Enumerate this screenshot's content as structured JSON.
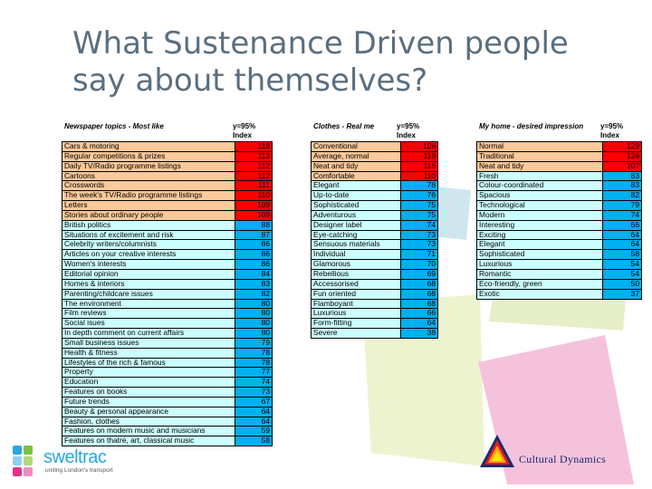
{
  "title_line1": "What Sustenance Driven people",
  "title_line2": "say about themselves?",
  "colors": {
    "orange": "#fbc99a",
    "red": "#ff0000",
    "light_blue": "#ccffff",
    "blue": "#00b0f0"
  },
  "tables": [
    {
      "header": "Newspaper topics - Most like",
      "index_header_1": "y=95%",
      "index_header_2": "Index",
      "rows": [
        {
          "label": "Cars & motoring",
          "value": "118",
          "tier": "high"
        },
        {
          "label": "Regular competitions & prizes",
          "value": "113",
          "tier": "high"
        },
        {
          "label": "Daily TV/Radio programme listings",
          "value": "112",
          "tier": "high"
        },
        {
          "label": "Cartoons",
          "value": "112",
          "tier": "high"
        },
        {
          "label": "Crosswords",
          "value": "111",
          "tier": "high"
        },
        {
          "label": "The week's TV/Radio programme listings",
          "value": "110",
          "tier": "high"
        },
        {
          "label": "Letters",
          "value": "109",
          "tier": "high"
        },
        {
          "label": "Stories about ordinary people",
          "value": "109",
          "tier": "high"
        },
        {
          "label": "British politics",
          "value": "88",
          "tier": "low"
        },
        {
          "label": "Situations of excitement and risk",
          "value": "87",
          "tier": "low"
        },
        {
          "label": "Celebrity writers/columnists",
          "value": "86",
          "tier": "low"
        },
        {
          "label": "Articles on your creative interests",
          "value": "86",
          "tier": "low"
        },
        {
          "label": "Women's interests",
          "value": "86",
          "tier": "low"
        },
        {
          "label": "Editorial opinion",
          "value": "84",
          "tier": "low"
        },
        {
          "label": "Homes & interiors",
          "value": "83",
          "tier": "low"
        },
        {
          "label": "Parenting/childcare issues",
          "value": "82",
          "tier": "low"
        },
        {
          "label": "The environment",
          "value": "80",
          "tier": "low"
        },
        {
          "label": "Film reviews",
          "value": "80",
          "tier": "low"
        },
        {
          "label": "Social isues",
          "value": "80",
          "tier": "low"
        },
        {
          "label": "In depth comment on current affairs",
          "value": "80",
          "tier": "low"
        },
        {
          "label": "Small business issues",
          "value": "79",
          "tier": "low"
        },
        {
          "label": "Health & fitness",
          "value": "78",
          "tier": "low"
        },
        {
          "label": "Lifestyles of the rich & famous",
          "value": "78",
          "tier": "low"
        },
        {
          "label": "Property",
          "value": "77",
          "tier": "low"
        },
        {
          "label": "Education",
          "value": "74",
          "tier": "low"
        },
        {
          "label": "Features on books",
          "value": "73",
          "tier": "low"
        },
        {
          "label": "Future trends",
          "value": "67",
          "tier": "low"
        },
        {
          "label": "Beauty & personal appearance",
          "value": "64",
          "tier": "low"
        },
        {
          "label": "Fashion, clothes",
          "value": "64",
          "tier": "low"
        },
        {
          "label": "Features on modern music and musicians",
          "value": "59",
          "tier": "low"
        },
        {
          "label": "Features on thatre, art, classical music",
          "value": "58",
          "tier": "low"
        }
      ]
    },
    {
      "header": "Clothes - Real me",
      "index_header_1": "y=95%",
      "index_header_2": "Index",
      "rows": [
        {
          "label": "Conventional",
          "value": "126",
          "tier": "high"
        },
        {
          "label": "Average, normal",
          "value": "119",
          "tier": "high"
        },
        {
          "label": "Neat and tidy",
          "value": "116",
          "tier": "high"
        },
        {
          "label": "Comfortable",
          "value": "110",
          "tier": "high"
        },
        {
          "label": "Elegant",
          "value": "78",
          "tier": "low"
        },
        {
          "label": "Up-to-date",
          "value": "76",
          "tier": "low"
        },
        {
          "label": "Sophisticated",
          "value": "75",
          "tier": "low"
        },
        {
          "label": "Adventurous",
          "value": "75",
          "tier": "low"
        },
        {
          "label": "Designer label",
          "value": "74",
          "tier": "low"
        },
        {
          "label": "Eye-catching",
          "value": "73",
          "tier": "low"
        },
        {
          "label": "Sensuous materials",
          "value": "73",
          "tier": "low"
        },
        {
          "label": "Individual",
          "value": "71",
          "tier": "low"
        },
        {
          "label": "Glamorous",
          "value": "70",
          "tier": "low"
        },
        {
          "label": "Rebellious",
          "value": "69",
          "tier": "low"
        },
        {
          "label": "Accessorised",
          "value": "68",
          "tier": "low"
        },
        {
          "label": "Fun oriented",
          "value": "68",
          "tier": "low"
        },
        {
          "label": "Flamboyant",
          "value": "68",
          "tier": "low"
        },
        {
          "label": "Luxurious",
          "value": "66",
          "tier": "low"
        },
        {
          "label": "Form-fitting",
          "value": "64",
          "tier": "low"
        },
        {
          "label": "Severe",
          "value": "38",
          "tier": "low"
        }
      ]
    },
    {
      "header": "My home - desired impression",
      "index_header_1": "y=95%",
      "index_header_2": "Index",
      "rows": [
        {
          "label": "Normal",
          "value": "129",
          "tier": "high"
        },
        {
          "label": "Traditional",
          "value": "126",
          "tier": "high"
        },
        {
          "label": "Neat and tidy",
          "value": "107",
          "tier": "high"
        },
        {
          "label": "Fresh",
          "value": "83",
          "tier": "low"
        },
        {
          "label": "Colour-coordinated",
          "value": "83",
          "tier": "low"
        },
        {
          "label": "Spacious",
          "value": "82",
          "tier": "low"
        },
        {
          "label": "Technological",
          "value": "79",
          "tier": "low"
        },
        {
          "label": "Modern",
          "value": "74",
          "tier": "low"
        },
        {
          "label": "Interesting",
          "value": "66",
          "tier": "low"
        },
        {
          "label": "Exciting",
          "value": "64",
          "tier": "low"
        },
        {
          "label": "Elegant",
          "value": "64",
          "tier": "low"
        },
        {
          "label": "Sophisticated",
          "value": "58",
          "tier": "low"
        },
        {
          "label": "Luxurious",
          "value": "54",
          "tier": "low"
        },
        {
          "label": "Romantic",
          "value": "54",
          "tier": "low"
        },
        {
          "label": "Eco-friendly, green",
          "value": "50",
          "tier": "low"
        },
        {
          "label": "Exotic",
          "value": "37",
          "tier": "low"
        }
      ]
    }
  ],
  "logo_left": {
    "name": "sweltrac",
    "tagline": "uniting London's transport"
  },
  "logo_right": {
    "name": "Cultural Dynamics"
  }
}
